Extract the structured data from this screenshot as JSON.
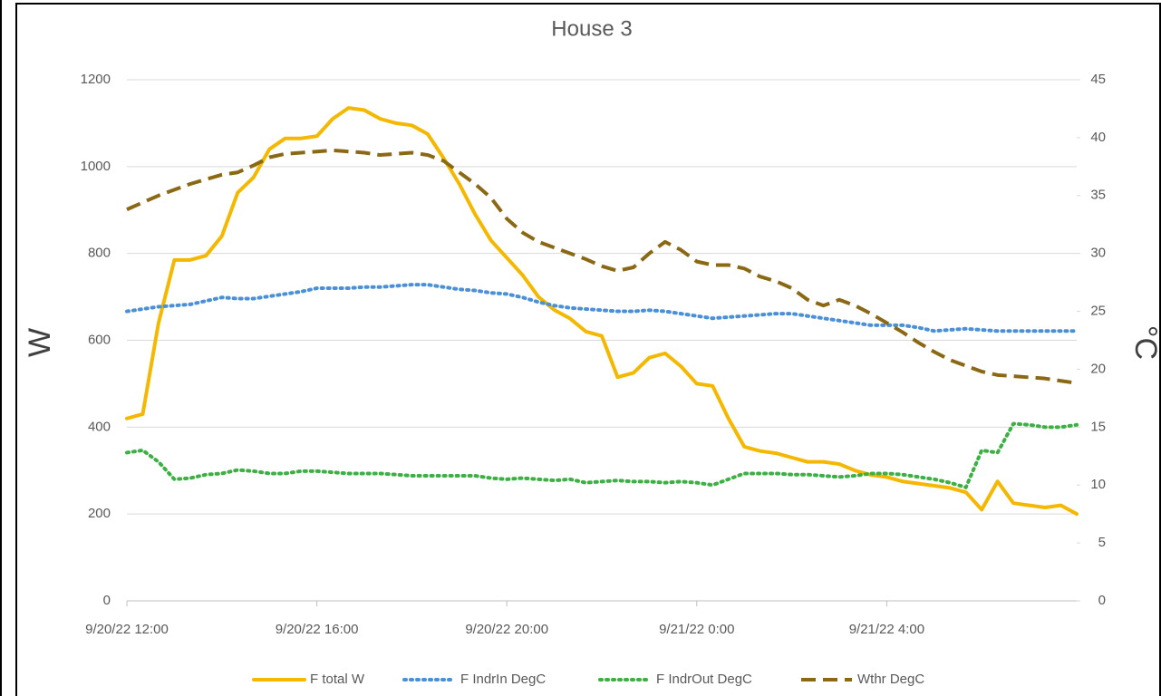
{
  "chart_data": {
    "type": "line",
    "title": "House 3",
    "y_label": "W",
    "y2_label": "°C",
    "x": [
      "9/20/22 12:00",
      "9/20/22 12:20",
      "9/20/22 12:40",
      "9/20/22 13:00",
      "9/20/22 13:20",
      "9/20/22 13:40",
      "9/20/22 14:00",
      "9/20/22 14:20",
      "9/20/22 14:40",
      "9/20/22 15:00",
      "9/20/22 15:20",
      "9/20/22 15:40",
      "9/20/22 16:00",
      "9/20/22 16:20",
      "9/20/22 16:40",
      "9/20/22 17:00",
      "9/20/22 17:20",
      "9/20/22 17:40",
      "9/20/22 18:00",
      "9/20/22 18:20",
      "9/20/22 18:40",
      "9/20/22 19:00",
      "9/20/22 19:20",
      "9/20/22 19:40",
      "9/20/22 20:00",
      "9/20/22 20:20",
      "9/20/22 20:40",
      "9/20/22 21:00",
      "9/20/22 21:20",
      "9/20/22 21:40",
      "9/20/22 22:00",
      "9/20/22 22:20",
      "9/20/22 22:40",
      "9/20/22 23:00",
      "9/20/22 23:20",
      "9/20/22 23:40",
      "9/21/22 0:00",
      "9/21/22 0:20",
      "9/21/22 0:40",
      "9/21/22 1:00",
      "9/21/22 1:20",
      "9/21/22 1:40",
      "9/21/22 2:00",
      "9/21/22 2:20",
      "9/21/22 2:40",
      "9/21/22 3:00",
      "9/21/22 3:20",
      "9/21/22 3:40",
      "9/21/22 4:00",
      "9/21/22 4:20",
      "9/21/22 4:40",
      "9/21/22 5:00",
      "9/21/22 5:20",
      "9/21/22 5:40",
      "9/21/22 6:00",
      "9/21/22 6:20",
      "9/21/22 6:40",
      "9/21/22 7:00",
      "9/21/22 7:20",
      "9/21/22 7:40",
      "9/21/22 8:00"
    ],
    "xlim": [
      "9/20/22 12:00",
      "9/21/22 8:00"
    ],
    "xticks": [
      "9/20/22 12:00",
      "9/20/22 16:00",
      "9/20/22 20:00",
      "9/21/22 0:00",
      "9/21/22 4:00"
    ],
    "ylim": [
      0,
      1200
    ],
    "yticks": [
      0,
      200,
      400,
      600,
      800,
      1000,
      1200
    ],
    "y2lim": [
      0,
      45
    ],
    "y2ticks": [
      0,
      5,
      10,
      15,
      20,
      25,
      30,
      35,
      40,
      45
    ],
    "grid": true,
    "legend": "bottom",
    "series": [
      {
        "name": "F total W",
        "color": "#f5b800",
        "dash": "solid",
        "values": [
          420,
          430,
          640,
          785,
          785,
          795,
          840,
          940,
          975,
          1040,
          1065,
          1065,
          1070,
          1110,
          1135,
          1130,
          1110,
          1100,
          1095,
          1075,
          1020,
          960,
          890,
          830,
          790,
          750,
          700,
          670,
          650,
          620,
          610,
          515,
          525,
          560,
          570,
          540,
          500,
          495,
          420,
          355,
          345,
          340,
          330,
          320,
          320,
          315,
          300,
          290,
          285,
          275,
          270,
          265,
          260,
          250,
          210,
          275,
          225,
          220,
          215,
          220,
          200
        ]
      },
      {
        "name": "F IndrIn DegC",
        "color": "#4a90d9",
        "dash": "dotted",
        "axis": "y2",
        "values": [
          25.0,
          25.2,
          25.4,
          25.5,
          25.6,
          25.9,
          26.2,
          26.1,
          26.1,
          26.3,
          26.5,
          26.7,
          27.0,
          27.0,
          27.0,
          27.1,
          27.1,
          27.2,
          27.3,
          27.3,
          27.1,
          26.9,
          26.8,
          26.6,
          26.5,
          26.2,
          25.8,
          25.5,
          25.3,
          25.2,
          25.1,
          25.0,
          25.0,
          25.1,
          25.0,
          24.8,
          24.6,
          24.4,
          24.5,
          24.6,
          24.7,
          24.8,
          24.8,
          24.6,
          24.4,
          24.2,
          24.0,
          23.8,
          23.8,
          23.8,
          23.6,
          23.3,
          23.4,
          23.5,
          23.4,
          23.3,
          23.3,
          23.3,
          23.3,
          23.3,
          23.3
        ]
      },
      {
        "name": "F IndrOut DegC",
        "color": "#3cb043",
        "dash": "dotted",
        "axis": "y2",
        "values": [
          12.8,
          13.0,
          12.0,
          10.5,
          10.6,
          10.9,
          11.0,
          11.3,
          11.2,
          11.0,
          11.0,
          11.2,
          11.2,
          11.1,
          11.0,
          11.0,
          11.0,
          10.9,
          10.8,
          10.8,
          10.8,
          10.8,
          10.8,
          10.6,
          10.5,
          10.6,
          10.5,
          10.4,
          10.5,
          10.2,
          10.3,
          10.4,
          10.3,
          10.3,
          10.2,
          10.3,
          10.2,
          10.0,
          10.5,
          11.0,
          11.0,
          11.0,
          10.9,
          10.9,
          10.8,
          10.7,
          10.8,
          11.0,
          11.0,
          10.9,
          10.7,
          10.5,
          10.2,
          9.8,
          13.0,
          12.8,
          15.3,
          15.2,
          15.0,
          15.0,
          15.2
        ]
      },
      {
        "name": "Wthr DegC",
        "color": "#8b6914",
        "dash": "dashed",
        "axis": "y2",
        "values": [
          33.8,
          34.4,
          35.0,
          35.5,
          36.0,
          36.4,
          36.8,
          37.0,
          37.6,
          38.3,
          38.6,
          38.7,
          38.8,
          38.9,
          38.8,
          38.7,
          38.5,
          38.6,
          38.7,
          38.5,
          38.0,
          37.0,
          36.0,
          34.8,
          33.0,
          31.8,
          31.0,
          30.5,
          30.0,
          29.5,
          28.9,
          28.5,
          28.8,
          30.0,
          31.0,
          30.3,
          29.3,
          29.0,
          29.0,
          28.7,
          28.0,
          27.6,
          27.0,
          26.0,
          25.5,
          26.0,
          25.5,
          24.8,
          24.0,
          23.2,
          22.3,
          21.5,
          20.8,
          20.3,
          19.8,
          19.5,
          19.4,
          19.3,
          19.2,
          19.0,
          18.8
        ]
      }
    ]
  }
}
